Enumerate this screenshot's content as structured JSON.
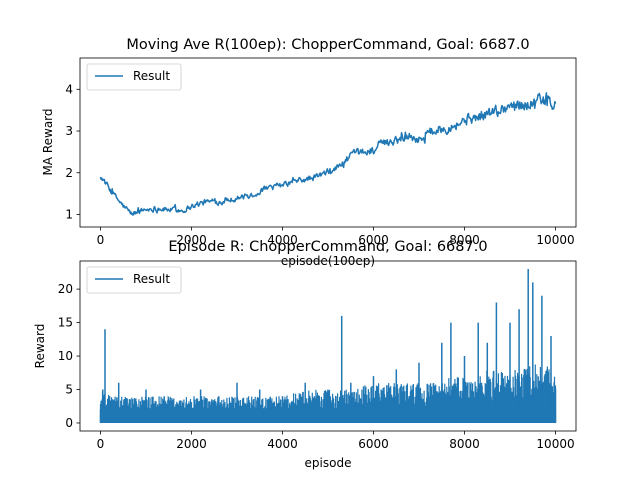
{
  "chart_data": [
    {
      "type": "line",
      "title": "Moving Ave R(100ep): ChopperCommand, Goal: 6687.0",
      "xlabel": "episode(100ep)",
      "ylabel": "MA Reward",
      "xlim": [
        -450,
        10450
      ],
      "ylim": [
        0.7,
        4.75
      ],
      "xticks": [
        0,
        2000,
        4000,
        6000,
        8000,
        10000
      ],
      "yticks": [
        1,
        2,
        3,
        4
      ],
      "grid": false,
      "legend": {
        "position": "top-left",
        "entries": [
          "Result"
        ]
      },
      "color": "#1f77b4",
      "series": [
        {
          "name": "Result",
          "x": [
            0,
            200,
            500,
            700,
            900,
            1200,
            1500,
            1800,
            2000,
            2300,
            2600,
            3000,
            3300,
            3600,
            3800,
            4000,
            4300,
            4600,
            5000,
            5300,
            5500,
            5800,
            6000,
            6200,
            6500,
            6800,
            7000,
            7300,
            7600,
            7900,
            8100,
            8400,
            8700,
            9000,
            9300,
            9600,
            9800,
            9950,
            10000
          ],
          "y": [
            1.95,
            1.6,
            1.2,
            1.0,
            1.1,
            1.15,
            1.12,
            1.1,
            1.2,
            1.3,
            1.3,
            1.4,
            1.45,
            1.6,
            1.65,
            1.7,
            1.8,
            1.85,
            2.0,
            2.2,
            2.4,
            2.5,
            2.55,
            2.7,
            2.8,
            2.9,
            2.8,
            3.0,
            3.1,
            3.2,
            3.3,
            3.35,
            3.5,
            3.6,
            3.65,
            3.7,
            3.75,
            3.6,
            3.6
          ]
        }
      ]
    },
    {
      "type": "line",
      "title": "Episode R: ChopperCommand, Goal: 6687.0",
      "xlabel": "episode",
      "ylabel": "Reward",
      "xlim": [
        -450,
        10450
      ],
      "ylim": [
        -1.2,
        24.2
      ],
      "xticks": [
        0,
        2000,
        4000,
        6000,
        8000,
        10000
      ],
      "yticks": [
        0,
        5,
        10,
        15,
        20
      ],
      "grid": false,
      "legend": {
        "position": "top-left",
        "entries": [
          "Result"
        ]
      },
      "color": "#1f77b4",
      "series": [
        {
          "name": "Result",
          "x": [
            0,
            50,
            100,
            200,
            400,
            700,
            1000,
            1400,
            1800,
            2200,
            2600,
            3000,
            3500,
            4000,
            4500,
            5000,
            5300,
            5500,
            6000,
            6500,
            7000,
            7500,
            7700,
            8000,
            8300,
            8500,
            8700,
            9000,
            9200,
            9400,
            9500,
            9700,
            9900,
            10000
          ],
          "y": [
            2,
            5,
            14,
            4,
            6,
            3,
            5,
            4,
            3,
            5,
            4,
            6,
            5,
            4,
            6,
            5,
            16,
            6,
            7,
            8,
            9,
            12,
            15,
            10,
            15,
            12,
            18,
            15,
            17,
            23,
            21,
            19,
            13,
            5
          ],
          "band_top": [
            4,
            5,
            5,
            4,
            4,
            4,
            4,
            4,
            4,
            4,
            4,
            4,
            4,
            4,
            5,
            5,
            5,
            5,
            6,
            6,
            6,
            6,
            7,
            7,
            7,
            8,
            8,
            8,
            8,
            9,
            9,
            9,
            9,
            8
          ],
          "floor": 0
        }
      ]
    }
  ]
}
